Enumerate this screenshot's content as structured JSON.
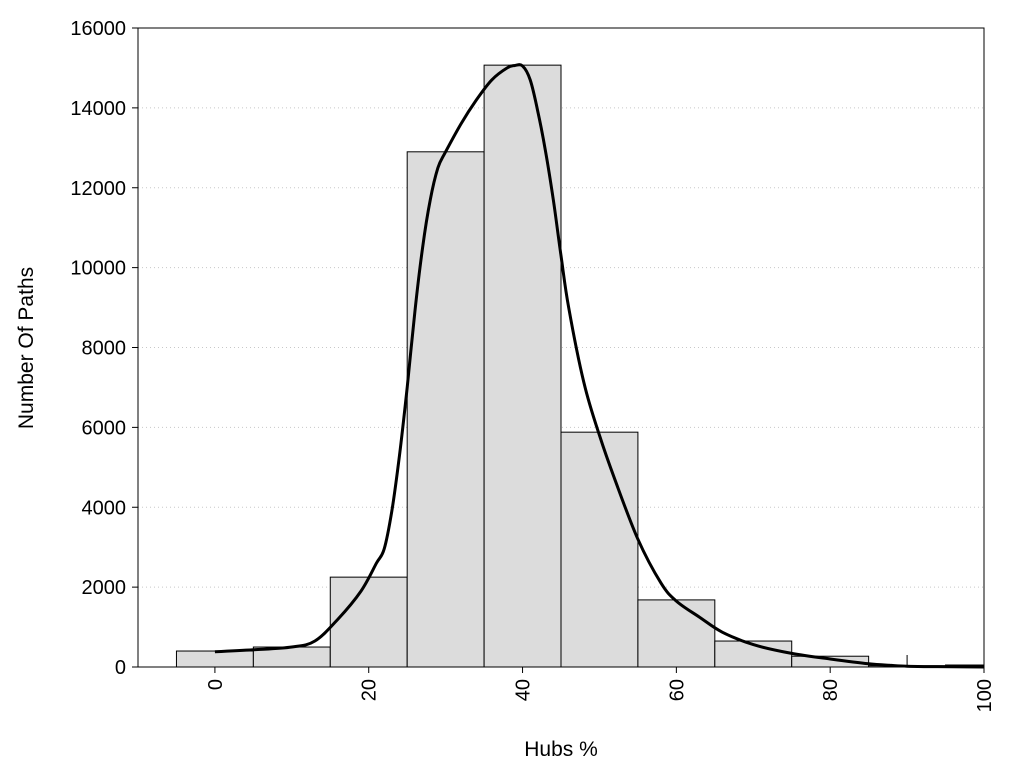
{
  "chart_data": {
    "type": "bar",
    "xlabel": "Hubs %",
    "ylabel": "Number Of Paths",
    "xlim": [
      -10,
      100
    ],
    "ylim": [
      0,
      16000
    ],
    "x_ticks": [
      0,
      20,
      40,
      60,
      80,
      100
    ],
    "x_tick_labels": [
      "0",
      "20",
      "40",
      "60",
      "80",
      "100"
    ],
    "y_ticks": [
      0,
      2000,
      4000,
      6000,
      8000,
      10000,
      12000,
      14000,
      16000
    ],
    "y_tick_labels": [
      "0",
      "2000",
      "4000",
      "6000",
      "8000",
      "10000",
      "12000",
      "14000",
      "16000"
    ],
    "grid": "horizontal-dotted",
    "bar_color": "#dcdcdc",
    "bar_edge_color": "#000000",
    "bins": [
      {
        "start": -5,
        "end": 5,
        "value": 400
      },
      {
        "start": 5,
        "end": 15,
        "value": 500
      },
      {
        "start": 15,
        "end": 25,
        "value": 2250
      },
      {
        "start": 25,
        "end": 35,
        "value": 12900
      },
      {
        "start": 35,
        "end": 45,
        "value": 15070
      },
      {
        "start": 45,
        "end": 55,
        "value": 5880
      },
      {
        "start": 55,
        "end": 65,
        "value": 1680
      },
      {
        "start": 65,
        "end": 75,
        "value": 650
      },
      {
        "start": 75,
        "end": 85,
        "value": 270
      },
      {
        "start": 85,
        "end": 95,
        "value": 30
      },
      {
        "start": 95,
        "end": 105,
        "value": 50
      }
    ],
    "density_curve": {
      "color": "#000000",
      "x": [
        0,
        5,
        10,
        13,
        16,
        19,
        21,
        22,
        23,
        24,
        25,
        26,
        27,
        28,
        29,
        30,
        32,
        34,
        36,
        38,
        39,
        40,
        41,
        42,
        43,
        44,
        45,
        46,
        48,
        50,
        52,
        55,
        58,
        60,
        63,
        66,
        70,
        75,
        80,
        85,
        88,
        90,
        93,
        96,
        100
      ],
      "y": [
        380,
        430,
        500,
        650,
        1200,
        1900,
        2600,
        2950,
        3900,
        5300,
        7000,
        8900,
        10500,
        11700,
        12500,
        12900,
        13600,
        14200,
        14700,
        15000,
        15060,
        15050,
        14700,
        13900,
        12900,
        11700,
        10300,
        9000,
        7100,
        5800,
        4700,
        3200,
        2100,
        1650,
        1250,
        870,
        560,
        340,
        200,
        80,
        40,
        20,
        10,
        5,
        0
      ]
    }
  }
}
